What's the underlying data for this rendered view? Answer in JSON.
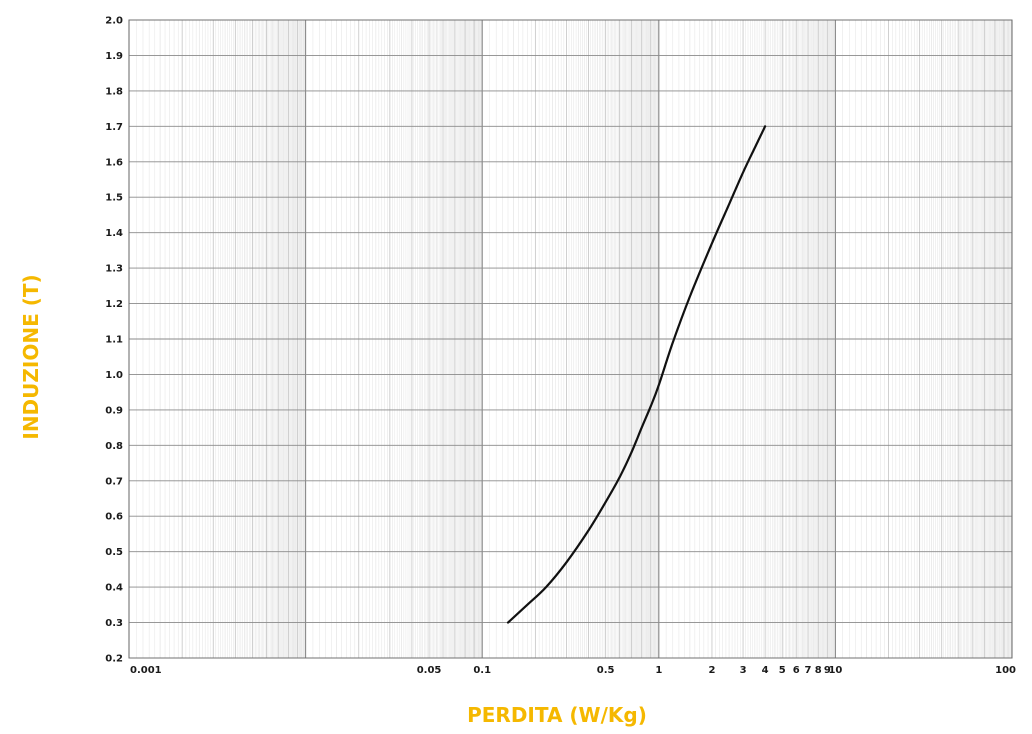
{
  "chart_data": {
    "type": "line",
    "xlabel": "PERDITA (W/Kg)",
    "ylabel": "INDUZIONE (T)",
    "x_scale": "log",
    "xlim": [
      0.001,
      100
    ],
    "ylim": [
      0.2,
      2.0
    ],
    "x_tick_labels": [
      {
        "value": 0.001,
        "label": "0.001"
      },
      {
        "value": 0.05,
        "label": "0.05"
      },
      {
        "value": 0.1,
        "label": "0.1"
      },
      {
        "value": 0.5,
        "label": "0.5"
      },
      {
        "value": 1,
        "label": "1"
      },
      {
        "value": 2,
        "label": "2"
      },
      {
        "value": 3,
        "label": "3"
      },
      {
        "value": 4,
        "label": "4"
      },
      {
        "value": 5,
        "label": "5"
      },
      {
        "value": 6,
        "label": "6"
      },
      {
        "value": 7,
        "label": "7"
      },
      {
        "value": 8,
        "label": "8"
      },
      {
        "value": 9,
        "label": "9"
      },
      {
        "value": 10,
        "label": "10"
      },
      {
        "value": 100,
        "label": "100"
      }
    ],
    "y_tick_labels": [
      "0.2",
      "0.3",
      "0.4",
      "0.5",
      "0.6",
      "0.7",
      "0.8",
      "0.9",
      "1.0",
      "1.1",
      "1.2",
      "1.3",
      "1.4",
      "1.5",
      "1.6",
      "1.7",
      "1.8",
      "1.9",
      "2.0"
    ],
    "grid": true,
    "colors": {
      "curve": "#111111",
      "axis_title": "#f5b800",
      "grid_major": "#8a8a8a",
      "grid_minor": "#c4c4c4",
      "grid_fine": "#e0e0e0"
    },
    "series": [
      {
        "x": [
          0.14,
          0.18,
          0.23,
          0.3,
          0.4,
          0.5,
          0.6,
          0.7,
          0.8,
          0.9,
          1.0,
          1.2,
          1.5,
          2.0,
          2.5,
          3.0,
          3.5,
          4.0
        ],
        "y": [
          0.3,
          0.35,
          0.4,
          0.47,
          0.56,
          0.64,
          0.71,
          0.78,
          0.85,
          0.91,
          0.97,
          1.09,
          1.22,
          1.37,
          1.48,
          1.57,
          1.64,
          1.7
        ]
      }
    ]
  }
}
